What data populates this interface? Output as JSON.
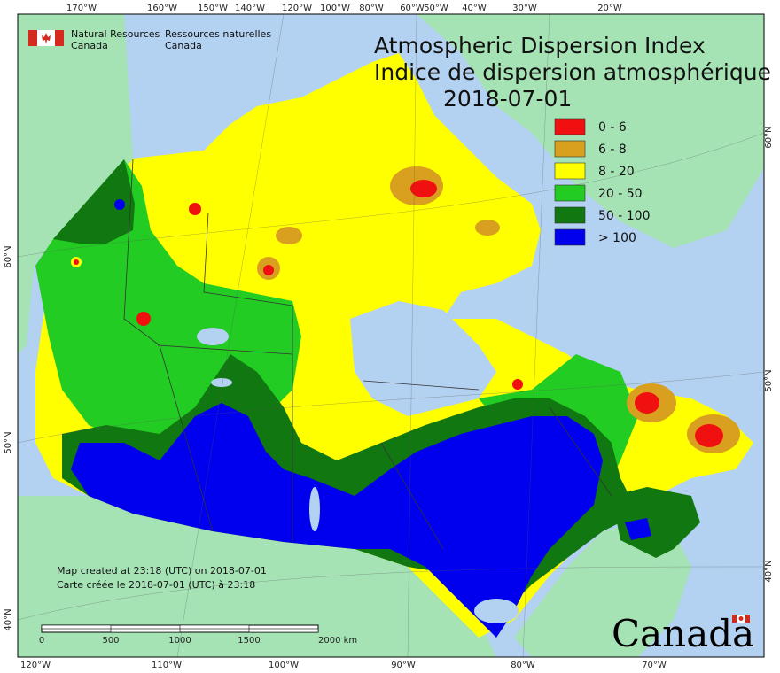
{
  "title": {
    "en": "Atmospheric Dispersion Index",
    "fr": "Indice de dispersion atmosphérique",
    "date": "2018-07-01"
  },
  "agency": {
    "en_line1": "Natural Resources",
    "en_line2": "Canada",
    "fr_line1": "Ressources naturelles",
    "fr_line2": "Canada"
  },
  "legend": [
    {
      "label": "0 - 6",
      "color": "#f01010"
    },
    {
      "label": "6 - 8",
      "color": "#d9a020"
    },
    {
      "label": "8 - 20",
      "color": "#ffff00"
    },
    {
      "label": "20 - 50",
      "color": "#22cc22"
    },
    {
      "label": "50 - 100",
      "color": "#117711"
    },
    {
      "label": "> 100",
      "color": "#0000ee"
    }
  ],
  "credits": {
    "en": "Map created at 23:18 (UTC) on 2018-07-01",
    "fr": "Carte créée le 2018-07-01 (UTC) à 23:18"
  },
  "scale_bar": {
    "labels": [
      "0",
      "500",
      "1000",
      "1500",
      "2000  km"
    ]
  },
  "graticule": {
    "top": [
      "170°W",
      "160°W",
      "150°W",
      "140°W",
      "120°W",
      "100°W",
      "80°W",
      "60°W",
      "50°W",
      "40°W",
      "30°W",
      "20°W"
    ],
    "bottom": [
      "120°W",
      "110°W",
      "100°W",
      "90°W",
      "80°W",
      "70°W"
    ],
    "left": [
      "60°N",
      "50°N",
      "40°N"
    ],
    "right": [
      "60°N",
      "50°N",
      "40°N"
    ]
  },
  "wordmark": "Canada",
  "colors": {
    "ocean": "#b3d1f0",
    "land_other": "#a5e3b5"
  }
}
